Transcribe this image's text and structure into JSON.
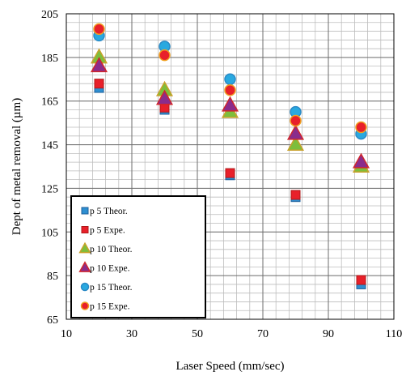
{
  "chart_data": {
    "type": "scatter",
    "xlabel": "Laser Speed (mm/sec)",
    "ylabel": "Dept of metal removal (µm)",
    "xlim": [
      10,
      110
    ],
    "ylim": [
      65,
      205
    ],
    "x_ticks": [
      10,
      30,
      50,
      70,
      90,
      110
    ],
    "y_ticks": [
      65,
      85,
      105,
      125,
      145,
      165,
      185,
      205
    ],
    "grid": true,
    "legend_position": "bottom-left",
    "series": [
      {
        "name": "p 5  Theor.",
        "marker": "square",
        "fill": "#2E8FD1",
        "stroke": "#1F5F9A",
        "x": [
          20,
          40,
          60,
          80,
          100
        ],
        "y": [
          171,
          161,
          131,
          121,
          81
        ]
      },
      {
        "name": "p 5  Expe.",
        "marker": "square",
        "fill": "#E8202A",
        "stroke": "#B01818",
        "x": [
          20,
          40,
          60,
          80,
          100
        ],
        "y": [
          173,
          162,
          132,
          122,
          83
        ]
      },
      {
        "name": "p 10  Theor.",
        "marker": "triangle",
        "fill": "#7DBE3C",
        "stroke": "#C9A12A",
        "x": [
          20,
          40,
          60,
          80,
          100
        ],
        "y": [
          185,
          170,
          160,
          145,
          135
        ]
      },
      {
        "name": "p 10  Expe.",
        "marker": "triangle",
        "fill": "#8A2C8C",
        "stroke": "#D0262C",
        "x": [
          20,
          40,
          60,
          80,
          100
        ],
        "y": [
          181,
          166,
          163,
          150,
          137
        ]
      },
      {
        "name": "p 15  Theor.",
        "marker": "circle",
        "fill": "#29A9E0",
        "stroke": "#2B8AC6",
        "x": [
          20,
          40,
          60,
          80,
          100
        ],
        "y": [
          195,
          190,
          175,
          160,
          150
        ]
      },
      {
        "name": "p 15  Expe.",
        "marker": "circle",
        "fill": "#E8202A",
        "stroke": "#F0A020",
        "x": [
          20,
          40,
          60,
          80,
          100
        ],
        "y": [
          198,
          186,
          170,
          156,
          153
        ]
      }
    ]
  }
}
